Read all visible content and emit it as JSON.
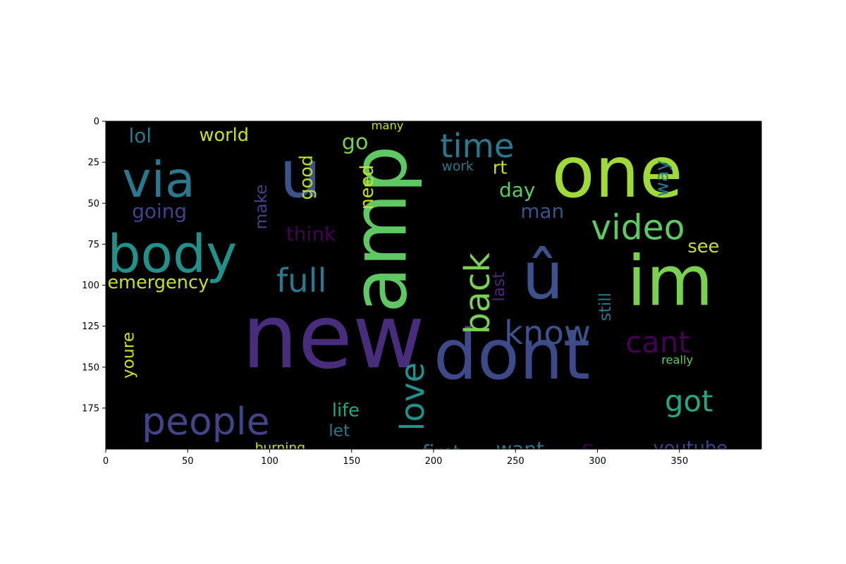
{
  "chart_data": {
    "type": "wordcloud",
    "title": "",
    "xlabel": "",
    "ylabel": "",
    "xlim": [
      0,
      400
    ],
    "ylim": [
      200,
      0
    ],
    "grid": false,
    "background": "#000000",
    "xticks": [
      "0",
      "50",
      "100",
      "150",
      "200",
      "250",
      "300",
      "350"
    ],
    "yticks": [
      "0",
      "25",
      "50",
      "75",
      "100",
      "125",
      "150",
      "175"
    ],
    "words": [
      {
        "text": "new",
        "x": 83,
        "y": 150,
        "size": 54,
        "rot": 0,
        "color": "#472d7b"
      },
      {
        "text": "dont",
        "x": 200,
        "y": 157,
        "size": 42,
        "rot": 0,
        "color": "#3e4989"
      },
      {
        "text": "amp",
        "x": 183,
        "y": 117,
        "size": 46,
        "rot": -90,
        "color": "#5ec962"
      },
      {
        "text": "one",
        "x": 272,
        "y": 46,
        "size": 43,
        "rot": 0,
        "color": "#a0da39"
      },
      {
        "text": "u",
        "x": 106,
        "y": 46,
        "size": 40,
        "rot": 0,
        "color": "#3b528b"
      },
      {
        "text": "im",
        "x": 318,
        "y": 112,
        "size": 42,
        "rot": 0,
        "color": "#7ad151"
      },
      {
        "text": "û",
        "x": 254,
        "y": 108,
        "size": 40,
        "rot": 0,
        "color": "#3b528b"
      },
      {
        "text": "body",
        "x": 1,
        "y": 92,
        "size": 32,
        "rot": 0,
        "color": "#21918c"
      },
      {
        "text": "via",
        "x": 10,
        "y": 46,
        "size": 30,
        "rot": 0,
        "color": "#2a788e"
      },
      {
        "text": "people",
        "x": 22,
        "y": 191,
        "size": 23,
        "rot": 0,
        "color": "#414487"
      },
      {
        "text": "video",
        "x": 296,
        "y": 72,
        "size": 21,
        "rot": 0,
        "color": "#5ec962"
      },
      {
        "text": "time",
        "x": 204,
        "y": 22,
        "size": 20,
        "rot": 0,
        "color": "#2a788e"
      },
      {
        "text": "back",
        "x": 234,
        "y": 130,
        "size": 21,
        "rot": -90,
        "color": "#7ad151"
      },
      {
        "text": "love",
        "x": 194,
        "y": 189,
        "size": 20,
        "rot": -90,
        "color": "#21918c"
      },
      {
        "text": "full",
        "x": 104,
        "y": 104,
        "size": 20,
        "rot": 0,
        "color": "#2a788e"
      },
      {
        "text": "know",
        "x": 243,
        "y": 136,
        "size": 20,
        "rot": 0,
        "color": "#3b528b"
      },
      {
        "text": "cant",
        "x": 317,
        "y": 141,
        "size": 18,
        "rot": 0,
        "color": "#440154"
      },
      {
        "text": "got",
        "x": 341,
        "y": 177,
        "size": 18,
        "rot": 0,
        "color": "#22a884"
      },
      {
        "text": "emergency",
        "x": 1,
        "y": 102,
        "size": 11,
        "rot": 0,
        "color": "#c8e020"
      },
      {
        "text": "world",
        "x": 57,
        "y": 12,
        "size": 11,
        "rot": 0,
        "color": "#c8e020"
      },
      {
        "text": "lol",
        "x": 14,
        "y": 13,
        "size": 12,
        "rot": 0,
        "color": "#2a788e"
      },
      {
        "text": "going",
        "x": 16,
        "y": 59,
        "size": 12,
        "rot": 0,
        "color": "#414487"
      },
      {
        "text": "youre",
        "x": 17,
        "y": 157,
        "size": 10,
        "rot": -90,
        "color": "#c8e020"
      },
      {
        "text": "make",
        "x": 98,
        "y": 66,
        "size": 10,
        "rot": -90,
        "color": "#414487"
      },
      {
        "text": "think",
        "x": 110,
        "y": 73,
        "size": 12,
        "rot": 0,
        "color": "#440154"
      },
      {
        "text": "good",
        "x": 126,
        "y": 48,
        "size": 11,
        "rot": -90,
        "color": "#b5de2b"
      },
      {
        "text": "need",
        "x": 163,
        "y": 54,
        "size": 11,
        "rot": -90,
        "color": "#c8e020"
      },
      {
        "text": "go",
        "x": 144,
        "y": 17,
        "size": 13,
        "rot": 0,
        "color": "#7ad151"
      },
      {
        "text": "many",
        "x": 162,
        "y": 5,
        "size": 7,
        "rot": 0,
        "color": "#c8e020"
      },
      {
        "text": "work",
        "x": 205,
        "y": 30,
        "size": 8,
        "rot": 0,
        "color": "#2a788e"
      },
      {
        "text": "rt",
        "x": 236,
        "y": 32,
        "size": 11,
        "rot": 0,
        "color": "#c8e020"
      },
      {
        "text": "day",
        "x": 240,
        "y": 46,
        "size": 12,
        "rot": 0,
        "color": "#5ec962"
      },
      {
        "text": "man",
        "x": 253,
        "y": 59,
        "size": 12,
        "rot": 0,
        "color": "#3b528b"
      },
      {
        "text": "way",
        "x": 343,
        "y": 46,
        "size": 11,
        "rot": -90,
        "color": "#2a788e"
      },
      {
        "text": "see",
        "x": 355,
        "y": 80,
        "size": 11,
        "rot": 0,
        "color": "#c8e020"
      },
      {
        "text": "last",
        "x": 243,
        "y": 110,
        "size": 10,
        "rot": -90,
        "color": "#482878"
      },
      {
        "text": "still",
        "x": 308,
        "y": 122,
        "size": 10,
        "rot": -90,
        "color": "#2a788e"
      },
      {
        "text": "really",
        "x": 339,
        "y": 148,
        "size": 7,
        "rot": 0,
        "color": "#5ec962"
      },
      {
        "text": "life",
        "x": 138,
        "y": 180,
        "size": 11,
        "rot": 0,
        "color": "#22a884"
      },
      {
        "text": "let",
        "x": 136,
        "y": 192,
        "size": 10,
        "rot": 0,
        "color": "#2a788e"
      },
      {
        "text": "burning",
        "x": 91,
        "y": 202,
        "size": 8,
        "rot": 0,
        "color": "#c8e020"
      },
      {
        "text": "first",
        "x": 193,
        "y": 206,
        "size": 12,
        "rot": 0,
        "color": "#2a788e"
      },
      {
        "text": "want",
        "x": 238,
        "y": 204,
        "size": 12,
        "rot": 0,
        "color": "#2a788e"
      },
      {
        "text": "fire",
        "x": 290,
        "y": 206,
        "size": 12,
        "rot": 0,
        "color": "#440154"
      },
      {
        "text": "youtube",
        "x": 334,
        "y": 203,
        "size": 11,
        "rot": 0,
        "color": "#414487"
      }
    ]
  }
}
